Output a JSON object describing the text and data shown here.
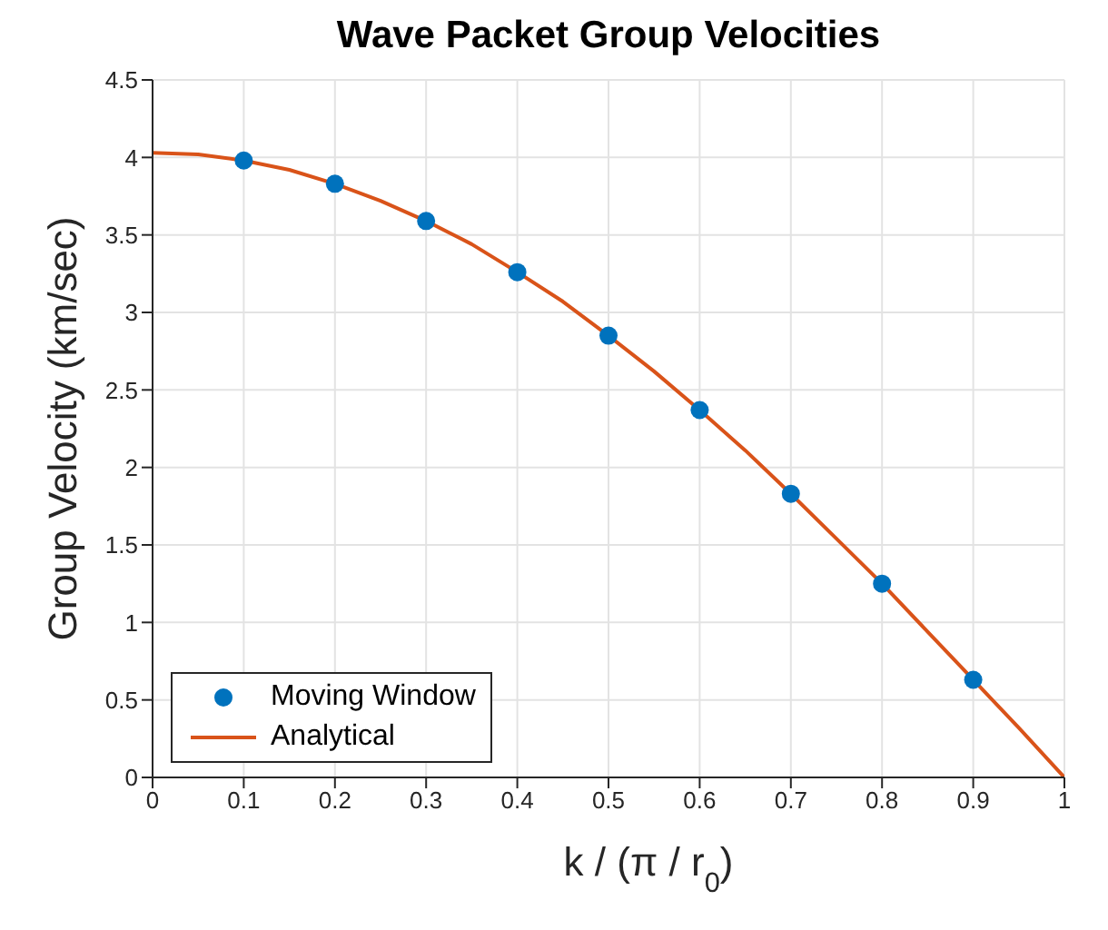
{
  "chart_data": {
    "type": "line",
    "title": "Wave Packet Group Velocities",
    "xlabel": "k / (π / r$_{0}$)",
    "ylabel": "Group Velocity (km/sec)",
    "xlim": [
      0,
      1
    ],
    "xticks": [
      0,
      0.1,
      0.2,
      0.3,
      0.4,
      0.5,
      0.6,
      0.7,
      0.8,
      0.9,
      1
    ],
    "ylim": [
      0,
      4.5
    ],
    "yticks": [
      0,
      0.5,
      1,
      1.5,
      2,
      2.5,
      3,
      3.5,
      4,
      4.5
    ],
    "grid": true,
    "legend": "bottom left",
    "series": [
      {
        "name": "Moving Window",
        "type": "scatter",
        "marker": "circle",
        "color": "#0072bd",
        "x": [
          0.1,
          0.2,
          0.3,
          0.4,
          0.5,
          0.6,
          0.7,
          0.8,
          0.9
        ],
        "values": [
          3.98,
          3.83,
          3.59,
          3.26,
          2.85,
          2.37,
          1.83,
          1.25,
          0.63
        ]
      },
      {
        "name": "Analytical",
        "type": "line",
        "color": "#d95319",
        "x": [
          0,
          0.05,
          0.1,
          0.15,
          0.2,
          0.25,
          0.3,
          0.35,
          0.4,
          0.45,
          0.5,
          0.55,
          0.6,
          0.65,
          0.7,
          0.75,
          0.8,
          0.85,
          0.9,
          0.95,
          1
        ],
        "values": [
          4.03,
          4.02,
          3.98,
          3.92,
          3.83,
          3.72,
          3.59,
          3.44,
          3.26,
          3.07,
          2.85,
          2.62,
          2.37,
          2.11,
          1.83,
          1.54,
          1.25,
          0.94,
          0.63,
          0.32,
          0
        ]
      }
    ]
  }
}
